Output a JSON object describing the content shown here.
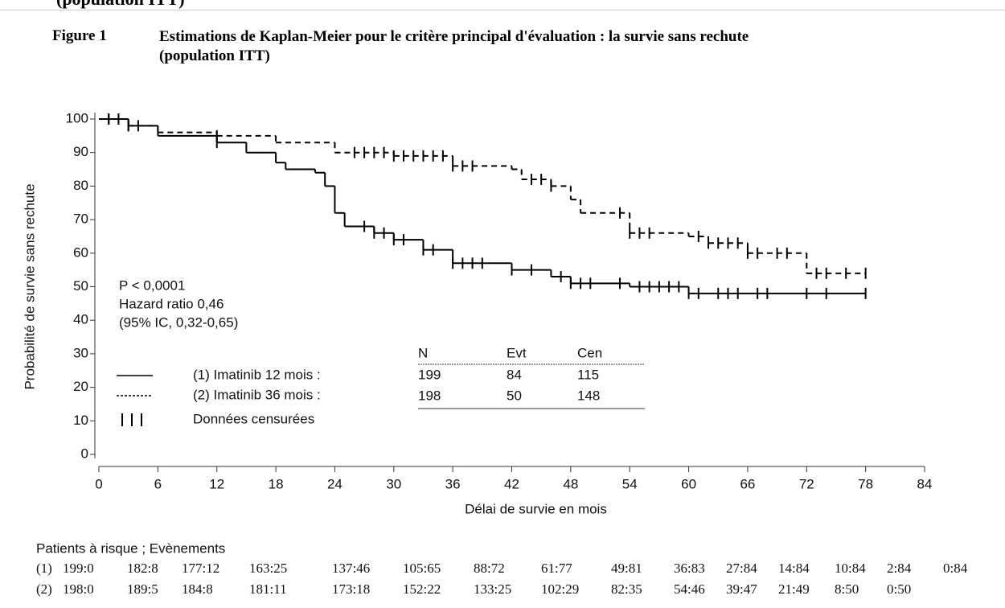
{
  "top_fragment": "(population ITT)",
  "figure": {
    "label": "Figure 1",
    "caption": "Estimations de Kaplan-Meier pour le critère principal d'évaluation : la survie sans rechute (population ITT)"
  },
  "chart_data": {
    "type": "step",
    "ylabel": "Probabilité de survie sans rechute",
    "xlabel": "Délai de survie en mois",
    "xlim": [
      0,
      84
    ],
    "ylim": [
      0,
      100
    ],
    "xticks": [
      0,
      6,
      12,
      18,
      24,
      30,
      36,
      42,
      48,
      54,
      60,
      66,
      72,
      78,
      84
    ],
    "yticks": [
      0,
      10,
      20,
      30,
      40,
      50,
      60,
      70,
      80,
      90,
      100
    ],
    "annotations": [
      "P < 0,0001",
      "Hazard ratio 0,46",
      "(95% IC, 0,32-0,65)"
    ],
    "series": [
      {
        "name": "(1) Imatinib 12 mois :",
        "color": "#000000",
        "dashed": false,
        "x": [
          0,
          3,
          6,
          12,
          15,
          18,
          19,
          22,
          23,
          24,
          25,
          28,
          30,
          33,
          36,
          42,
          46,
          48,
          54,
          60,
          78
        ],
        "values": [
          100,
          98,
          95,
          93,
          90,
          87,
          85,
          84,
          80,
          72,
          68,
          66,
          64,
          61,
          57,
          55,
          53,
          51,
          50,
          48,
          48
        ],
        "censored": [
          1,
          2,
          3,
          12,
          27,
          28,
          29,
          30,
          31,
          33,
          34,
          36,
          37,
          38,
          39,
          42,
          44,
          47,
          48,
          49,
          50,
          53,
          55,
          56,
          57,
          58,
          59,
          60,
          61,
          63,
          64,
          65,
          67,
          68,
          72,
          74,
          78
        ]
      },
      {
        "name": "(2) Imatinib 36 mois :",
        "color": "#000000",
        "dashed": true,
        "x": [
          0,
          3,
          6,
          12,
          18,
          24,
          30,
          36,
          42,
          43,
          46,
          48,
          49,
          54,
          60,
          62,
          66,
          72,
          78
        ],
        "values": [
          100,
          98,
          96,
          95,
          93,
          90,
          89,
          86,
          85,
          82,
          80,
          76,
          72,
          66,
          65,
          63,
          60,
          54,
          54
        ],
        "censored": [
          1,
          2,
          3,
          4,
          12,
          26,
          27,
          28,
          29,
          30,
          31,
          32,
          33,
          34,
          35,
          36,
          37,
          38,
          44,
          45,
          46,
          53,
          54,
          55,
          56,
          61,
          62,
          63,
          64,
          65,
          66,
          67,
          69,
          70,
          73,
          74,
          76,
          78
        ]
      }
    ],
    "censor_label": "Données censurées",
    "table": {
      "header": [
        "N",
        "Evt",
        "Cen"
      ],
      "rows": [
        [
          199,
          84,
          115
        ],
        [
          198,
          50,
          148
        ]
      ]
    }
  },
  "risk_table": {
    "title": "Patients à risque ; Evènements",
    "rows": [
      {
        "label": "(1)",
        "values": [
          "199:0",
          "182:8",
          "177:12",
          "163:25",
          "137:46",
          "105:65",
          "88:72",
          "61:77",
          "49:81",
          "36:83",
          "27:84",
          "14:84",
          "10:84",
          "2:84",
          "0:84"
        ]
      },
      {
        "label": "(2)",
        "values": [
          "198:0",
          "189:5",
          "184:8",
          "181:11",
          "173:18",
          "152:22",
          "133:25",
          "102:29",
          "82:35",
          "54:46",
          "39:47",
          "21:49",
          "8:50",
          "0:50"
        ]
      }
    ]
  }
}
